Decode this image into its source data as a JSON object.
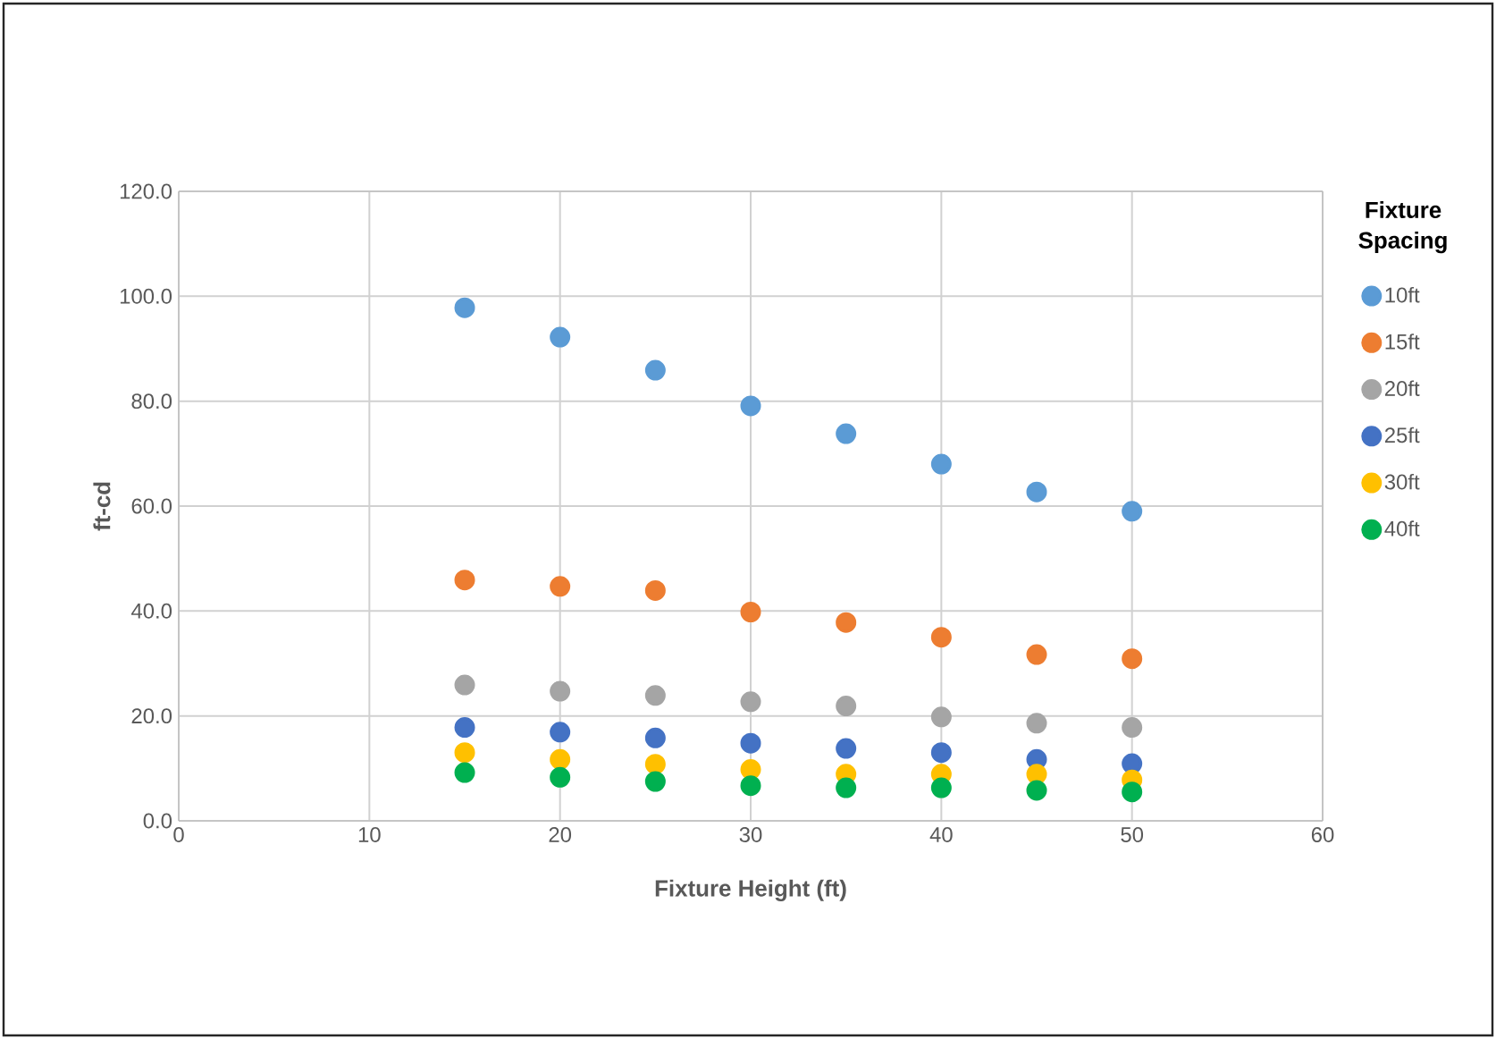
{
  "chart_data": {
    "type": "scatter",
    "xlabel": "Fixture Height (ft)",
    "ylabel": "ft-cd",
    "legend_title": "Fixture Spacing",
    "x": [
      15,
      20,
      25,
      30,
      35,
      40,
      45,
      50
    ],
    "series": [
      {
        "name": "10ft",
        "color": "#5b9bd5",
        "values": [
          97.8,
          92.2,
          85.9,
          79.1,
          73.8,
          68.0,
          62.7,
          59.0
        ]
      },
      {
        "name": "15ft",
        "color": "#ed7d31",
        "values": [
          45.9,
          44.7,
          43.9,
          39.8,
          37.8,
          35.0,
          31.7,
          30.9
        ]
      },
      {
        "name": "20ft",
        "color": "#a5a5a5",
        "values": [
          25.9,
          24.7,
          23.9,
          22.7,
          21.9,
          19.8,
          18.6,
          17.8
        ]
      },
      {
        "name": "25ft",
        "color": "#4472c4",
        "values": [
          17.8,
          16.9,
          15.8,
          14.8,
          13.8,
          13.0,
          11.7,
          10.9
        ]
      },
      {
        "name": "30ft",
        "color": "#ffc000",
        "values": [
          13.0,
          11.7,
          10.8,
          9.8,
          8.9,
          8.9,
          8.9,
          7.8
        ]
      },
      {
        "name": "40ft",
        "color": "#00b050",
        "values": [
          9.2,
          8.3,
          7.5,
          6.7,
          6.3,
          6.3,
          5.8,
          5.5
        ]
      }
    ],
    "xlim": [
      0,
      60
    ],
    "xticks": [
      0,
      10,
      20,
      30,
      40,
      50,
      60
    ],
    "ylim": [
      0,
      120
    ],
    "yticks": [
      {
        "value": 0,
        "label": "0.0"
      },
      {
        "value": 20,
        "label": "20.0"
      },
      {
        "value": 40,
        "label": "40.0"
      },
      {
        "value": 60,
        "label": "60.0"
      },
      {
        "value": 80,
        "label": "80.0"
      },
      {
        "value": 100,
        "label": "100.0"
      },
      {
        "value": 120,
        "label": "120.0"
      }
    ],
    "grid": true,
    "legend": "right"
  }
}
